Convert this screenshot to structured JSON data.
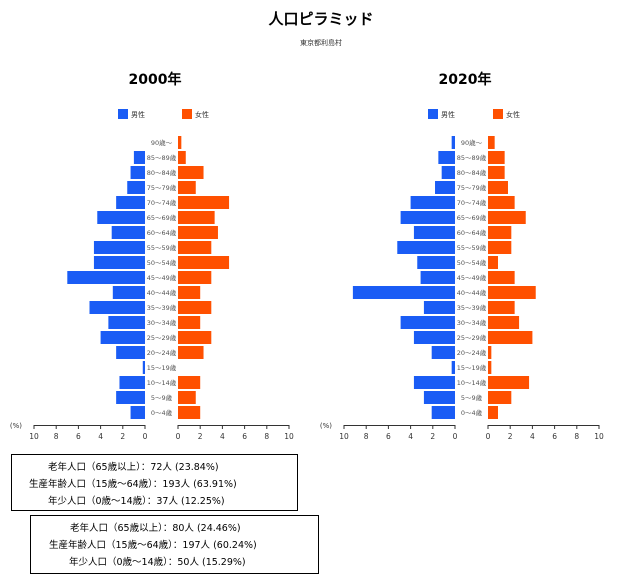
{
  "page": {
    "title": "人口ピラミッド",
    "subtitle": "東京都利島村"
  },
  "legend": {
    "male": "男性",
    "female": "女性"
  },
  "colors": {
    "male": "#1a5cf5",
    "female": "#ff5000"
  },
  "axis": {
    "unit_label": "(%)",
    "ticks": [
      "10",
      "8",
      "6",
      "4",
      "2",
      "0"
    ],
    "ticks_right": [
      "0",
      "2",
      "4",
      "6",
      "8",
      "10"
    ]
  },
  "chart_data": [
    {
      "type": "bar",
      "title": "2000年",
      "categories": [
        "0～4歳",
        "5～9歳",
        "10～14歳",
        "15～19歳",
        "20～24歳",
        "25～29歳",
        "30～34歳",
        "35～39歳",
        "40～44歳",
        "45～49歳",
        "50～54歳",
        "55～59歳",
        "60～64歳",
        "65～69歳",
        "70～74歳",
        "75～79歳",
        "80～84歳",
        "85～89歳",
        "90歳～"
      ],
      "series": [
        {
          "name": "男性",
          "values": [
            1.3,
            2.6,
            2.3,
            0.2,
            2.6,
            4.0,
            3.3,
            5.0,
            2.9,
            7.0,
            4.6,
            4.6,
            3.0,
            4.3,
            2.6,
            1.6,
            1.3,
            1.0,
            0.0
          ]
        },
        {
          "name": "女性",
          "values": [
            2.0,
            1.6,
            2.0,
            0.0,
            2.3,
            3.0,
            2.0,
            3.0,
            2.0,
            3.0,
            4.6,
            3.0,
            3.6,
            3.3,
            4.6,
            1.6,
            2.3,
            0.7,
            0.3
          ]
        }
      ],
      "xlim": [
        0,
        10
      ],
      "xlabel": "(%)",
      "legend": "top"
    },
    {
      "type": "bar",
      "title": "2020年",
      "categories": [
        "0～4歳",
        "5～9歳",
        "10～14歳",
        "15～19歳",
        "20～24歳",
        "25～29歳",
        "30～34歳",
        "35～39歳",
        "40～44歳",
        "45～49歳",
        "50～54歳",
        "55～59歳",
        "60～64歳",
        "65～69歳",
        "70～74歳",
        "75～79歳",
        "80～84歳",
        "85～89歳",
        "90歳～"
      ],
      "series": [
        {
          "name": "男性",
          "values": [
            2.1,
            2.8,
            3.7,
            0.3,
            2.1,
            3.7,
            4.9,
            2.8,
            9.2,
            3.1,
            3.4,
            5.2,
            3.7,
            4.9,
            4.0,
            1.8,
            1.2,
            1.5,
            0.3
          ]
        },
        {
          "name": "女性",
          "values": [
            0.9,
            2.1,
            3.7,
            0.3,
            0.3,
            4.0,
            2.8,
            2.4,
            4.3,
            2.4,
            0.9,
            2.1,
            2.1,
            3.4,
            2.4,
            1.8,
            1.5,
            1.5,
            0.6
          ]
        }
      ],
      "xlim": [
        0,
        10
      ],
      "xlabel": "(%)",
      "legend": "top"
    }
  ],
  "summaries": [
    {
      "elderly": "老年人口（65歳以上）：72人 (23.84%)",
      "working": "生産年齢人口（15歳～64歳）：193人 (63.91%)",
      "young": "年少人口（0歳～14歳）：37人 (12.25%)"
    },
    {
      "elderly": "老年人口（65歳以上）：80人 (24.46%)",
      "working": "生産年齢人口（15歳～64歳）：197人 (60.24%)",
      "young": "年少人口（0歳～14歳）：50人 (15.29%)"
    }
  ]
}
